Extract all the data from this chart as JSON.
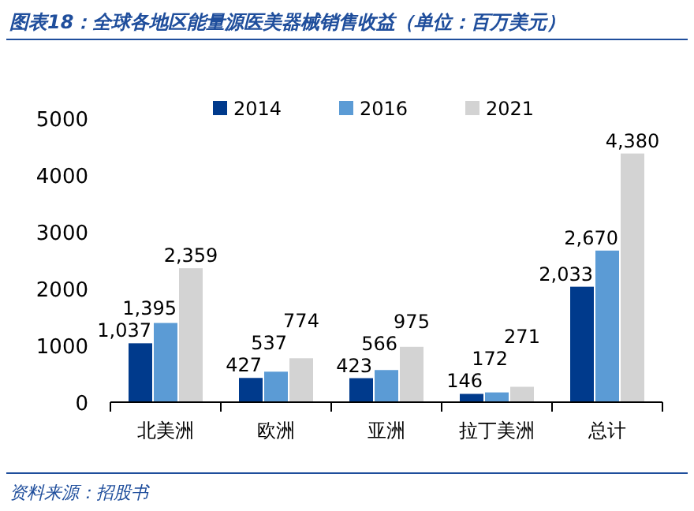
{
  "chart_data": {
    "type": "bar",
    "title": "图表18：全球各地区能量源医美器械销售收益（单位：百万美元）",
    "categories": [
      "北美洲",
      "欧洲",
      "亚洲",
      "拉丁美洲",
      "总计"
    ],
    "series": [
      {
        "name": "2014",
        "color": "#003a8c",
        "values": [
          1037,
          427,
          423,
          146,
          2033
        ],
        "value_labels": [
          "1,037",
          "427",
          "423",
          "146",
          "2,033"
        ]
      },
      {
        "name": "2016",
        "color": "#5b9bd5",
        "values": [
          1395,
          537,
          566,
          172,
          2670
        ],
        "value_labels": [
          "1,395",
          "537",
          "566",
          "172",
          "2,670"
        ]
      },
      {
        "name": "2021",
        "color": "#d3d3d3",
        "values": [
          2359,
          774,
          975,
          271,
          4380
        ],
        "value_labels": [
          "2,359",
          "774",
          "975",
          "271",
          "4,380"
        ]
      }
    ],
    "ylim": [
      0,
      5000
    ],
    "yticks": [
      0,
      1000,
      2000,
      3000,
      4000,
      5000
    ],
    "grid": false,
    "legend": "top",
    "annotations": [
      "资料来源：招股书"
    ]
  }
}
